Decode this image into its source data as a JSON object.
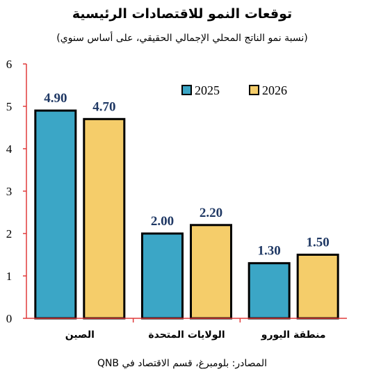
{
  "chart_data": {
    "type": "bar",
    "title": "توقعات النمو للاقتصادات الرئيسية",
    "subtitle": "(نسبة نمو الناتج المحلي الإجمالي الحقيقي، على أساس سنوي)",
    "categories": [
      "الصين",
      "الولايات المتحدة",
      "منطقة اليورو"
    ],
    "series": [
      {
        "name": "2025",
        "values": [
          4.9,
          2.0,
          1.3
        ],
        "labels": [
          "4.90",
          "2.00",
          "1.30"
        ],
        "color": "#3ba6c6"
      },
      {
        "name": "2026",
        "values": [
          4.7,
          2.2,
          1.5
        ],
        "labels": [
          "4.70",
          "2.20",
          "1.50"
        ],
        "color": "#f5cd6a"
      }
    ],
    "ylim": [
      0,
      6
    ],
    "yticks": [
      "0",
      "1",
      "2",
      "3",
      "4",
      "5",
      "6"
    ],
    "axis_color": "#e03b3b",
    "value_label_color": "#1f3864",
    "legend_position": "top-right",
    "grid": false,
    "source": "المصادر: بلومبرغ، قسم الاقتصاد في QNB"
  }
}
